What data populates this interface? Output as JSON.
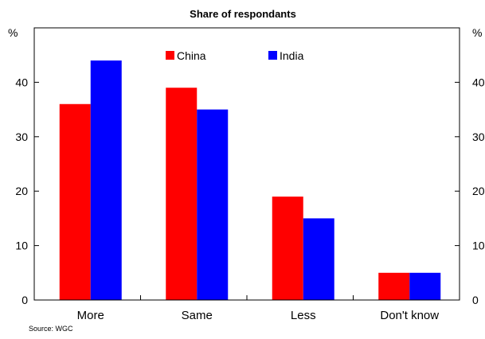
{
  "chart_data": {
    "type": "bar",
    "title": "Share of respondants",
    "y_unit_left": "%",
    "y_unit_right": "%",
    "categories": [
      "More",
      "Same",
      "Less",
      "Don't know"
    ],
    "series": [
      {
        "name": "China",
        "color": "#ff0000",
        "values": [
          36,
          39,
          19,
          5
        ]
      },
      {
        "name": "India",
        "color": "#0000ff",
        "values": [
          44,
          35,
          15,
          5
        ]
      }
    ],
    "ylim": [
      0,
      50
    ],
    "yticks": [
      0,
      10,
      20,
      30,
      40
    ],
    "grid": false,
    "legend_position": "top-center",
    "source": "Source: WGC"
  }
}
